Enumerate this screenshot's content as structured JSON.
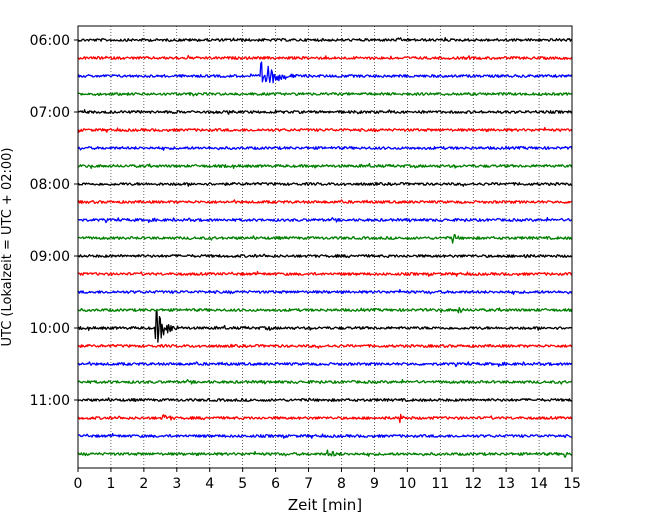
{
  "chart_data": {
    "type": "line",
    "title": "",
    "xlabel": "Zeit  [min]",
    "ylabel": "UTC (Lokalzeit = UTC + 02:00)",
    "xlim": [
      0,
      15
    ],
    "xticks": [
      0,
      1,
      2,
      3,
      4,
      5,
      6,
      7,
      8,
      9,
      10,
      11,
      12,
      13,
      14,
      15
    ],
    "xtick_labels": [
      "0",
      "1",
      "2",
      "3",
      "4",
      "5",
      "6",
      "7",
      "8",
      "9",
      "10",
      "11",
      "12",
      "13",
      "14",
      "15"
    ],
    "ytick_labels": [
      "06:00",
      "07:00",
      "08:00",
      "09:00",
      "10:00",
      "11:00"
    ],
    "ytick_rows": [
      0,
      4,
      8,
      12,
      16,
      20
    ],
    "grid": "vertical dotted",
    "legend": "none",
    "row_minutes": 15,
    "trace_colors": [
      "#000000",
      "#ff0000",
      "#0000ff",
      "#008000"
    ],
    "traces": [
      {
        "time": "06:00",
        "color": "#000000",
        "events": []
      },
      {
        "time": "06:15",
        "color": "#ff0000",
        "events": []
      },
      {
        "time": "06:30",
        "color": "#0000ff",
        "events": [
          {
            "minute": 5.6,
            "amplitude": 14,
            "duration": 1.4
          }
        ]
      },
      {
        "time": "06:45",
        "color": "#008000",
        "events": []
      },
      {
        "time": "07:00",
        "color": "#000000",
        "events": []
      },
      {
        "time": "07:15",
        "color": "#ff0000",
        "events": []
      },
      {
        "time": "07:30",
        "color": "#0000ff",
        "events": []
      },
      {
        "time": "07:45",
        "color": "#008000",
        "events": []
      },
      {
        "time": "08:00",
        "color": "#000000",
        "events": []
      },
      {
        "time": "08:15",
        "color": "#ff0000",
        "events": []
      },
      {
        "time": "08:30",
        "color": "#0000ff",
        "events": []
      },
      {
        "time": "08:45",
        "color": "#008000",
        "events": [
          {
            "minute": 11.4,
            "amplitude": 6,
            "duration": 0.4
          }
        ]
      },
      {
        "time": "09:00",
        "color": "#000000",
        "events": [
          {
            "minute": 13.6,
            "amplitude": 3,
            "duration": 0.4
          }
        ]
      },
      {
        "time": "09:15",
        "color": "#ff0000",
        "events": []
      },
      {
        "time": "09:30",
        "color": "#0000ff",
        "events": []
      },
      {
        "time": "09:45",
        "color": "#008000",
        "events": [
          {
            "minute": 11.6,
            "amplitude": 4,
            "duration": 0.3
          }
        ]
      },
      {
        "time": "10:00",
        "color": "#000000",
        "events": [
          {
            "minute": 2.4,
            "amplitude": 17,
            "duration": 0.9
          },
          {
            "minute": 5.8,
            "amplitude": 3,
            "duration": 0.3
          }
        ]
      },
      {
        "time": "10:15",
        "color": "#ff0000",
        "events": []
      },
      {
        "time": "10:30",
        "color": "#0000ff",
        "events": []
      },
      {
        "time": "10:45",
        "color": "#008000",
        "events": []
      },
      {
        "time": "11:00",
        "color": "#000000",
        "events": []
      },
      {
        "time": "11:15",
        "color": "#ff0000",
        "events": [
          {
            "minute": 2.6,
            "amplitude": 4,
            "duration": 1.0
          },
          {
            "minute": 9.8,
            "amplitude": 5,
            "duration": 0.4
          }
        ]
      },
      {
        "time": "11:30",
        "color": "#0000ff",
        "events": []
      },
      {
        "time": "11:45",
        "color": "#008000",
        "events": [
          {
            "minute": 7.6,
            "amplitude": 4,
            "duration": 1.2
          },
          {
            "minute": 14.8,
            "amplitude": 4,
            "duration": 0.2
          }
        ]
      }
    ]
  }
}
